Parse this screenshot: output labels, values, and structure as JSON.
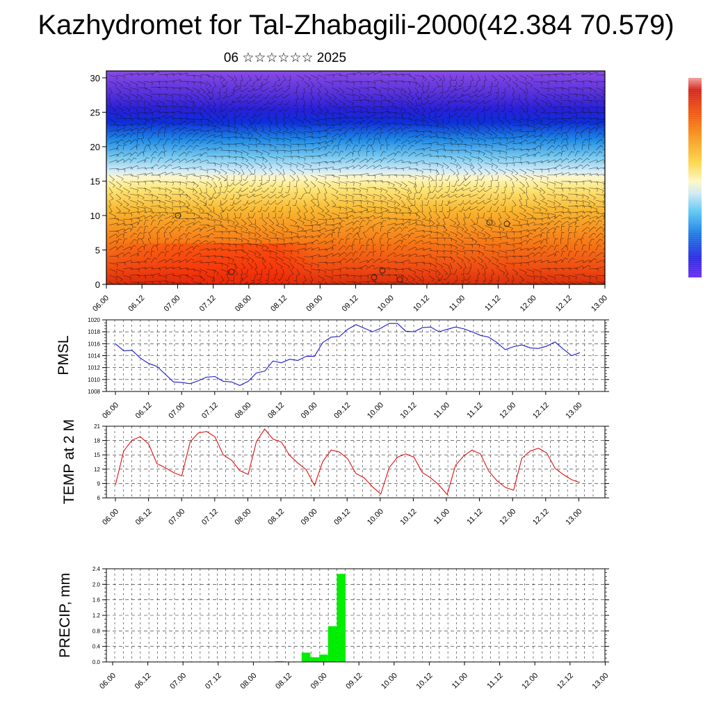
{
  "title": "Kazhydromet for Tal-Zhabagili-2000(42.384 70.579)",
  "subtitle": "06 ☆☆☆☆☆☆ 2025",
  "time_labels": [
    "06.00",
    "06.12",
    "07.00",
    "07.12",
    "08.00",
    "08.12",
    "09.00",
    "09.12",
    "10.00",
    "10.12",
    "11.00",
    "11.12",
    "12.00",
    "12.12",
    "13.00"
  ],
  "colors": {
    "pmsl_line": "#1a1acc",
    "temp_line": "#e01010",
    "precip_bar": "#00ee00"
  },
  "chart_data": [
    {
      "type": "heatmap",
      "title": "",
      "xlabel": "",
      "ylabel": "",
      "x": [
        "06.00",
        "06.12",
        "07.00",
        "07.12",
        "08.00",
        "08.12",
        "09.00",
        "09.12",
        "10.00",
        "10.12",
        "11.00",
        "11.12",
        "12.00",
        "12.12",
        "13.00"
      ],
      "ylim": [
        0,
        31
      ],
      "yticks": [
        0,
        5,
        10,
        15,
        20,
        25,
        30
      ],
      "colorbar_unlabeled": true,
      "overlay": "wind barbs",
      "color_bands": [
        {
          "y": [
            0,
            4
          ],
          "color": "warm red"
        },
        {
          "y": [
            4,
            14
          ],
          "color": "orange-yellow"
        },
        {
          "y": [
            14,
            20
          ],
          "color": "light blue"
        },
        {
          "y": [
            20,
            26
          ],
          "color": "blue"
        },
        {
          "y": [
            26,
            31
          ],
          "color": "violet"
        }
      ]
    },
    {
      "type": "line",
      "ylabel": "PMSL",
      "ylim": [
        1008,
        1020
      ],
      "yticks": [
        1008,
        1010,
        1012,
        1014,
        1016,
        1018,
        1020
      ],
      "grid": true,
      "x": [
        0,
        3,
        6,
        9,
        12,
        15,
        18,
        21,
        24,
        27,
        30,
        33,
        36,
        39,
        42,
        45,
        48,
        51,
        54,
        57,
        60,
        63,
        66,
        69,
        72,
        75,
        78,
        81,
        84,
        87,
        90,
        93,
        96,
        99,
        102,
        105,
        108,
        111,
        114,
        117,
        120,
        123,
        126,
        129,
        132,
        135,
        138,
        141,
        144,
        147,
        150,
        153,
        156,
        159,
        162,
        165,
        168
      ],
      "series": [
        {
          "values": [
            1016.0,
            1014.8,
            1014.9,
            1013.6,
            1012.7,
            1012.2,
            1010.9,
            1009.6,
            1009.5,
            1009.3,
            1009.8,
            1010.4,
            1010.5,
            1009.7,
            1009.6,
            1009.0,
            1009.7,
            1011.1,
            1011.4,
            1013.1,
            1012.8,
            1013.4,
            1013.2,
            1013.9,
            1013.9,
            1016.2,
            1017.1,
            1017.2,
            1018.4,
            1019.2,
            1018.6,
            1018.0,
            1018.6,
            1019.4,
            1019.4,
            1018.1,
            1018.0,
            1018.7,
            1018.8,
            1018.0,
            1018.4,
            1018.8,
            1018.5,
            1018.0,
            1017.4,
            1017.1,
            1016.2,
            1015.0,
            1015.5,
            1015.8,
            1015.3,
            1015.2,
            1015.6,
            1016.3,
            1015.1,
            1014.0,
            1014.5
          ]
        }
      ]
    },
    {
      "type": "line",
      "ylabel": "TEMP at 2 M",
      "ylim": [
        6,
        21
      ],
      "yticks": [
        6,
        9,
        12,
        15,
        18,
        21
      ],
      "grid": true,
      "x": [
        0,
        3,
        6,
        9,
        12,
        15,
        18,
        21,
        24,
        27,
        30,
        33,
        36,
        39,
        42,
        45,
        48,
        51,
        54,
        57,
        60,
        63,
        66,
        69,
        72,
        75,
        78,
        81,
        84,
        87,
        90,
        93,
        96,
        99,
        102,
        105,
        108,
        111,
        114,
        117,
        120,
        123,
        126,
        129,
        132,
        135,
        138,
        141,
        144,
        147,
        150,
        153,
        156,
        159,
        162,
        165,
        168
      ],
      "series": [
        {
          "values": [
            8.7,
            15.8,
            18.1,
            18.8,
            17.3,
            13.2,
            12.3,
            11.3,
            10.6,
            17.7,
            19.6,
            19.9,
            18.8,
            15.0,
            13.9,
            11.7,
            10.9,
            17.8,
            20.4,
            18.3,
            17.7,
            14.9,
            13.3,
            11.9,
            8.6,
            13.6,
            16.0,
            15.6,
            14.2,
            11.1,
            10.2,
            8.3,
            6.8,
            12.3,
            14.5,
            15.2,
            14.5,
            11.3,
            10.2,
            8.7,
            6.7,
            12.8,
            14.8,
            16.0,
            15.2,
            11.6,
            9.6,
            8.2,
            7.6,
            14.3,
            15.8,
            16.4,
            15.4,
            12.2,
            10.9,
            9.8,
            9.2
          ]
        }
      ]
    },
    {
      "type": "bar",
      "ylabel": "PRECIP, mm",
      "ylim": [
        0,
        2.4
      ],
      "yticks": [
        "0.0",
        "0.4",
        "0.8",
        "1.2",
        "1.6",
        "2.0",
        "2.4"
      ],
      "grid": true,
      "bar_width_hours": 3,
      "x": [
        57,
        66,
        69,
        72,
        75,
        78,
        81
      ],
      "values": [
        0.02,
        0.24,
        0.12,
        0.19,
        0.92,
        2.27,
        0.0
      ]
    }
  ]
}
